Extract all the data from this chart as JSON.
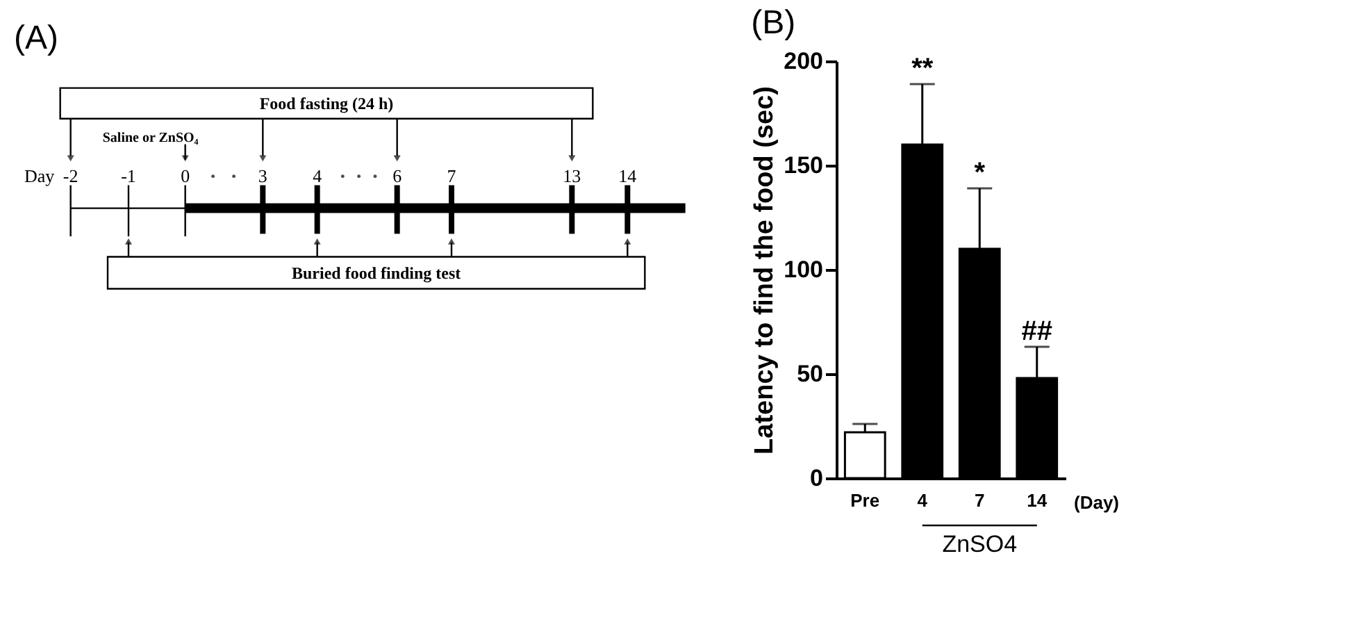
{
  "chart_data": [
    {
      "type": "other",
      "title": "(A)",
      "annotations": [
        "Food fasting (24 h)",
        "Saline or ZnSO₄",
        "Day",
        "-2",
        "-1",
        "0",
        "3",
        "4",
        "6",
        "7",
        "13",
        "14",
        "Buried food finding test"
      ]
    },
    {
      "type": "bar",
      "title": "(B)",
      "ylabel": "Latency to find the food (sec)",
      "categories": [
        "Pre",
        "4",
        "7",
        "14"
      ],
      "values": [
        22,
        160,
        110,
        48
      ],
      "errors": [
        [
          22,
          26
        ],
        [
          160,
          189
        ],
        [
          110,
          139
        ],
        [
          48,
          63
        ]
      ],
      "colors": [
        "#ffffff",
        "#000000",
        "#000000",
        "#000000"
      ],
      "ylim": [
        0,
        200
      ],
      "yticks": [
        0,
        50,
        100,
        150,
        200
      ],
      "grid": false,
      "annotations": [
        {
          "text": "**",
          "x": "4",
          "y": 189
        },
        {
          "text": "*",
          "x": "7",
          "y": 139
        },
        {
          "text": "##",
          "x": "14",
          "y": 63
        },
        "(Day)",
        "ZnSO4"
      ]
    }
  ]
}
